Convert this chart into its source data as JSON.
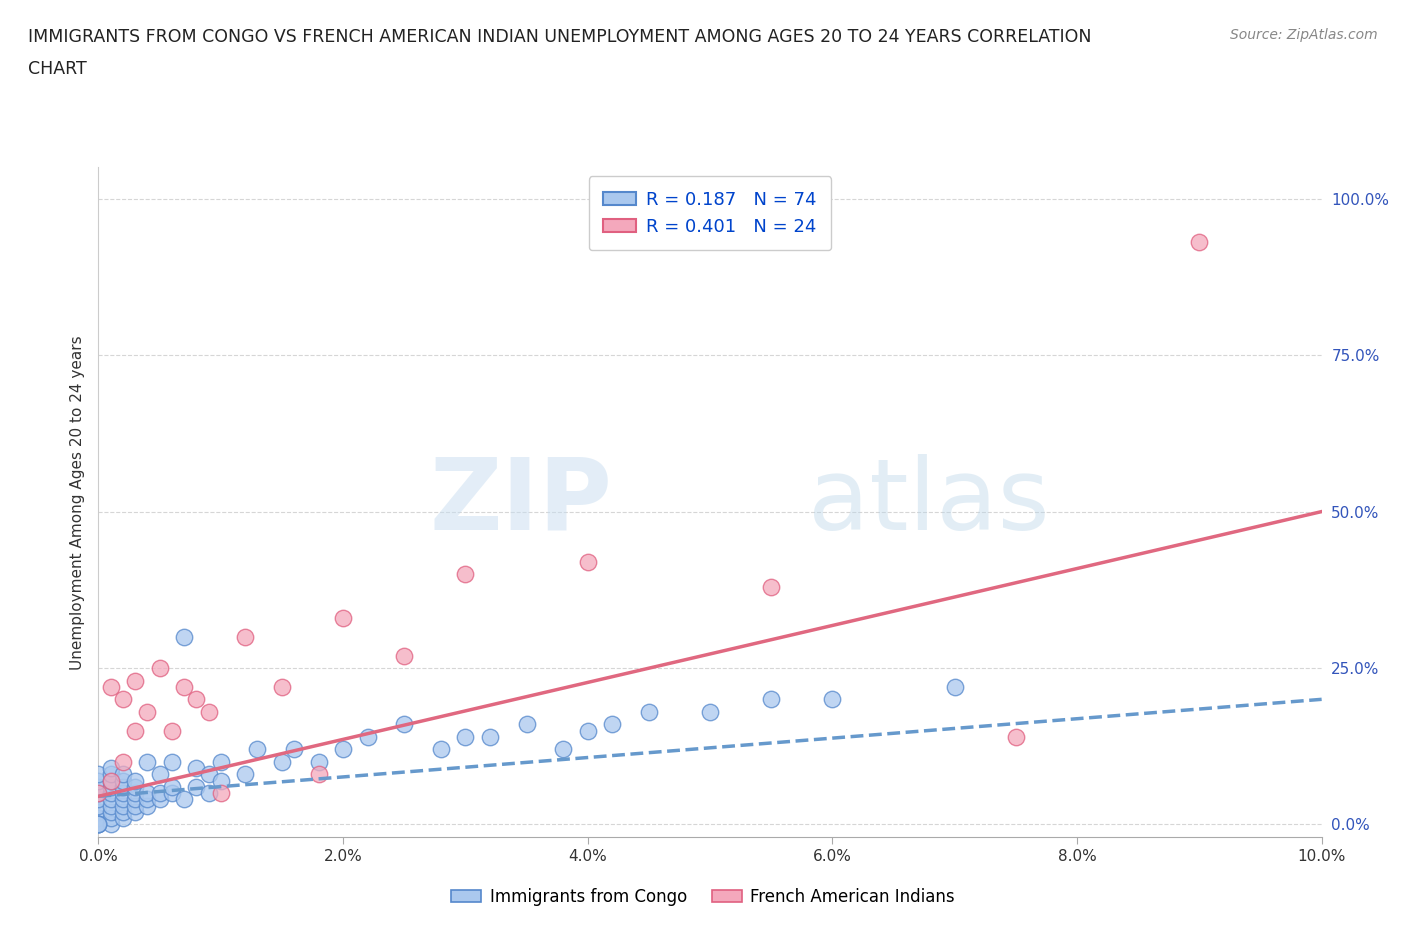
{
  "title_line1": "IMMIGRANTS FROM CONGO VS FRENCH AMERICAN INDIAN UNEMPLOYMENT AMONG AGES 20 TO 24 YEARS CORRELATION",
  "title_line2": "CHART",
  "source_text": "Source: ZipAtlas.com",
  "ylabel": "Unemployment Among Ages 20 to 24 years",
  "xlim": [
    0.0,
    0.1
  ],
  "ylim": [
    -0.02,
    1.05
  ],
  "xticks": [
    0.0,
    0.02,
    0.04,
    0.06,
    0.08,
    0.1
  ],
  "xticklabels": [
    "0.0%",
    "2.0%",
    "4.0%",
    "6.0%",
    "8.0%",
    "10.0%"
  ],
  "yticks": [
    0.0,
    0.25,
    0.5,
    0.75,
    1.0
  ],
  "yticklabels": [
    "0.0%",
    "25.0%",
    "50.0%",
    "75.0%",
    "100.0%"
  ],
  "blue_fill": "#aac8ee",
  "blue_edge": "#5588cc",
  "pink_fill": "#f4a8bc",
  "pink_edge": "#e06080",
  "blue_line_color": "#6699cc",
  "pink_line_color": "#e06880",
  "legend_text1": "R = 0.187   N = 74",
  "legend_text2": "R = 0.401   N = 24",
  "watermark_zip": "ZIP",
  "watermark_atlas": "atlas",
  "legend_label1": "Immigrants from Congo",
  "legend_label2": "French American Indians",
  "background_color": "#ffffff",
  "grid_color": "#cccccc",
  "blue_trend_x0": 0.0,
  "blue_trend_y0": 0.045,
  "blue_trend_x1": 0.1,
  "blue_trend_y1": 0.2,
  "pink_trend_x0": 0.0,
  "pink_trend_y0": 0.045,
  "pink_trend_x1": 0.1,
  "pink_trend_y1": 0.5,
  "blue_scatter_x": [
    0.0,
    0.0,
    0.0,
    0.0,
    0.0,
    0.0,
    0.0,
    0.0,
    0.0,
    0.0,
    0.001,
    0.001,
    0.001,
    0.001,
    0.001,
    0.001,
    0.001,
    0.001,
    0.001,
    0.001,
    0.002,
    0.002,
    0.002,
    0.002,
    0.002,
    0.002,
    0.002,
    0.002,
    0.003,
    0.003,
    0.003,
    0.003,
    0.003,
    0.003,
    0.004,
    0.004,
    0.004,
    0.004,
    0.005,
    0.005,
    0.005,
    0.006,
    0.006,
    0.006,
    0.007,
    0.007,
    0.008,
    0.008,
    0.009,
    0.009,
    0.01,
    0.01,
    0.012,
    0.013,
    0.015,
    0.016,
    0.018,
    0.02,
    0.022,
    0.025,
    0.028,
    0.03,
    0.032,
    0.035,
    0.038,
    0.04,
    0.042,
    0.045,
    0.05,
    0.055,
    0.06,
    0.07,
    0.0,
    0.0
  ],
  "blue_scatter_y": [
    0.0,
    0.01,
    0.02,
    0.03,
    0.04,
    0.05,
    0.06,
    0.07,
    0.08,
    0.0,
    0.0,
    0.01,
    0.02,
    0.03,
    0.04,
    0.05,
    0.06,
    0.07,
    0.08,
    0.09,
    0.01,
    0.02,
    0.03,
    0.04,
    0.05,
    0.06,
    0.07,
    0.08,
    0.02,
    0.03,
    0.04,
    0.05,
    0.06,
    0.07,
    0.03,
    0.04,
    0.05,
    0.1,
    0.04,
    0.05,
    0.08,
    0.05,
    0.06,
    0.1,
    0.04,
    0.3,
    0.06,
    0.09,
    0.05,
    0.08,
    0.07,
    0.1,
    0.08,
    0.12,
    0.1,
    0.12,
    0.1,
    0.12,
    0.14,
    0.16,
    0.12,
    0.14,
    0.14,
    0.16,
    0.12,
    0.15,
    0.16,
    0.18,
    0.18,
    0.2,
    0.2,
    0.22,
    0.0,
    0.0
  ],
  "pink_scatter_x": [
    0.0,
    0.001,
    0.001,
    0.002,
    0.002,
    0.003,
    0.003,
    0.004,
    0.005,
    0.006,
    0.007,
    0.008,
    0.009,
    0.01,
    0.012,
    0.015,
    0.018,
    0.02,
    0.025,
    0.03,
    0.04,
    0.055,
    0.075,
    0.09
  ],
  "pink_scatter_y": [
    0.05,
    0.07,
    0.22,
    0.1,
    0.2,
    0.15,
    0.23,
    0.18,
    0.25,
    0.15,
    0.22,
    0.2,
    0.18,
    0.05,
    0.3,
    0.22,
    0.08,
    0.33,
    0.27,
    0.4,
    0.42,
    0.38,
    0.14,
    0.93
  ]
}
